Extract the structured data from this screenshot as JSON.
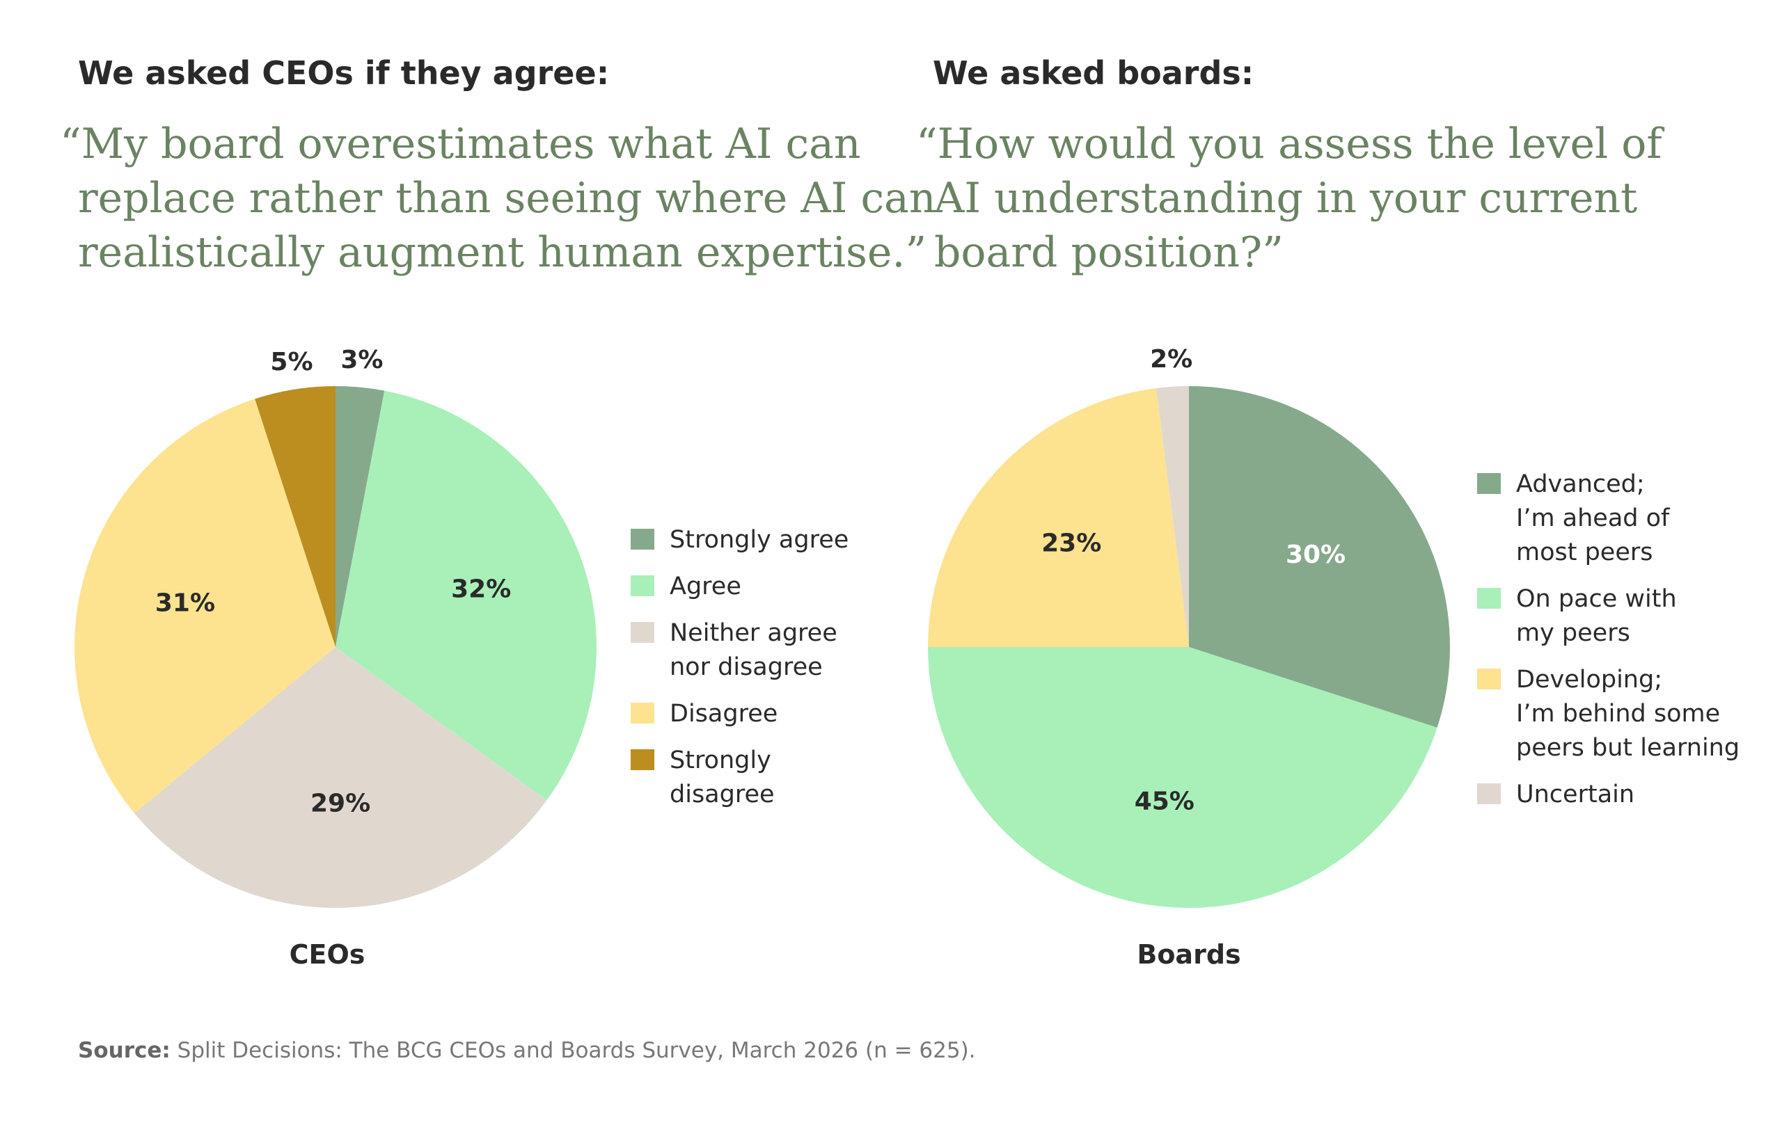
{
  "colors": {
    "strong_green": "#86a98c",
    "light_green": "#a8f0b8",
    "beige": "#e0d8cf",
    "yellow": "#fde38f",
    "gold": "#bb8e1f",
    "quote_text": "#6a8362"
  },
  "left": {
    "heading": "We asked CEOs if they agree:",
    "quote_lines": [
      "“My board overestimates what AI can",
      "replace rather than seeing where AI can",
      "realistically augment human expertise.”"
    ]
  },
  "right": {
    "heading": "We asked boards:",
    "quote_lines": [
      "“How would you assess the level of",
      "AI understanding in your current",
      "board position?”"
    ]
  },
  "source": {
    "label": "Source:",
    "text": " Split Decisions: The BCG CEOs and Boards Survey, March 2026 (n = 625)."
  },
  "chart_data": [
    {
      "type": "pie",
      "title": "CEOs",
      "legend_position": "right",
      "slices": [
        {
          "label": "Strongly agree",
          "value": 3,
          "value_label": "3%",
          "color": "#86a98c"
        },
        {
          "label": "Agree",
          "value": 32,
          "value_label": "32%",
          "color": "#a8f0b8"
        },
        {
          "label": "Neither agree\nnor disagree",
          "value": 29,
          "value_label": "29%",
          "color": "#e0d8cf"
        },
        {
          "label": "Disagree",
          "value": 31,
          "value_label": "31%",
          "color": "#fde38f"
        },
        {
          "label": "Strongly disagree",
          "value": 5,
          "value_label": "5%",
          "color": "#bb8e1f"
        }
      ]
    },
    {
      "type": "pie",
      "title": "Boards",
      "legend_position": "right",
      "slices": [
        {
          "label": "Advanced;\nI’m ahead of\nmost peers",
          "value": 30,
          "value_label": "30%",
          "color": "#86a98c"
        },
        {
          "label": "On pace with\nmy peers",
          "value": 45,
          "value_label": "45%",
          "color": "#a8f0b8"
        },
        {
          "label": "Developing;\nI’m behind some\npeers but learning",
          "value": 23,
          "value_label": "23%",
          "color": "#fde38f"
        },
        {
          "label": "Uncertain",
          "value": 2,
          "value_label": "2%",
          "color": "#e0d8cf"
        }
      ]
    }
  ]
}
